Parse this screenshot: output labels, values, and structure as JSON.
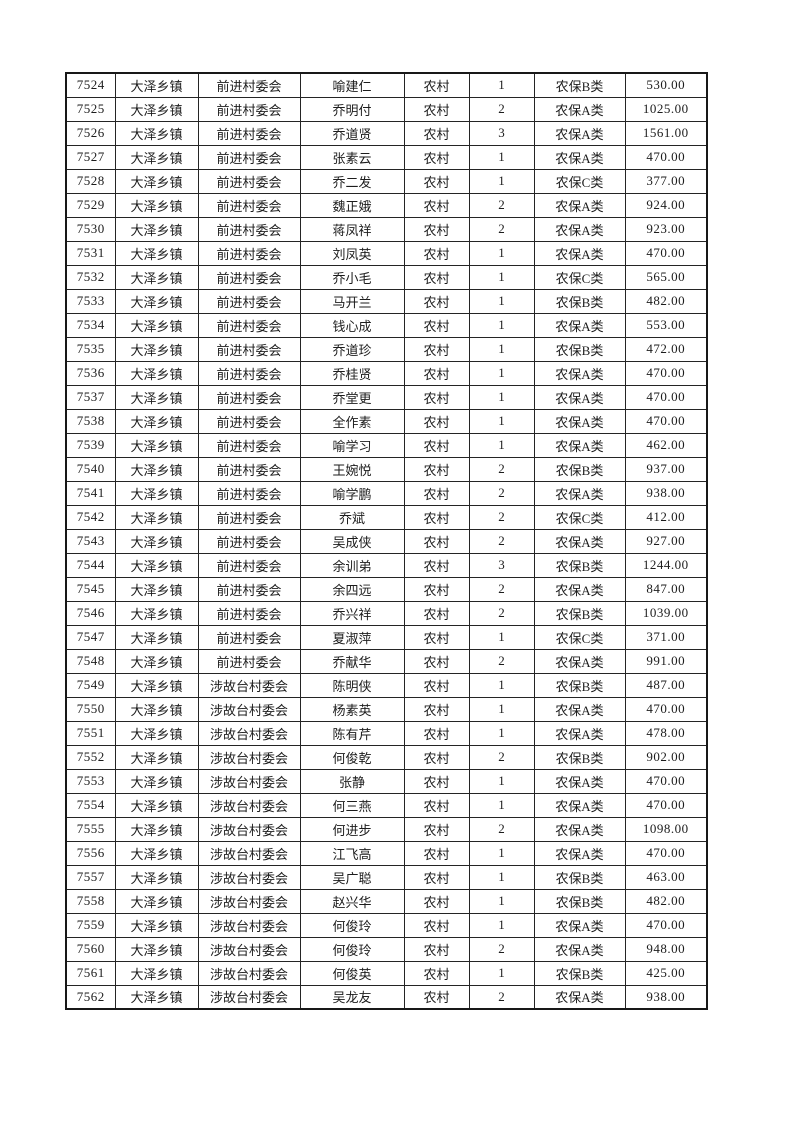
{
  "page": {
    "background_color": "#ffffff",
    "border_color": "#1c1c1c",
    "text_color": "#1c1c1c"
  },
  "table": {
    "rows": [
      [
        "7524",
        "大泽乡镇",
        "前进村委会",
        "喻建仁",
        "农村",
        "1",
        "农保B类",
        "530.00"
      ],
      [
        "7525",
        "大泽乡镇",
        "前进村委会",
        "乔明付",
        "农村",
        "2",
        "农保A类",
        "1025.00"
      ],
      [
        "7526",
        "大泽乡镇",
        "前进村委会",
        "乔道贤",
        "农村",
        "3",
        "农保A类",
        "1561.00"
      ],
      [
        "7527",
        "大泽乡镇",
        "前进村委会",
        "张素云",
        "农村",
        "1",
        "农保A类",
        "470.00"
      ],
      [
        "7528",
        "大泽乡镇",
        "前进村委会",
        "乔二发",
        "农村",
        "1",
        "农保C类",
        "377.00"
      ],
      [
        "7529",
        "大泽乡镇",
        "前进村委会",
        "魏正娥",
        "农村",
        "2",
        "农保A类",
        "924.00"
      ],
      [
        "7530",
        "大泽乡镇",
        "前进村委会",
        "蒋凤祥",
        "农村",
        "2",
        "农保A类",
        "923.00"
      ],
      [
        "7531",
        "大泽乡镇",
        "前进村委会",
        "刘凤英",
        "农村",
        "1",
        "农保A类",
        "470.00"
      ],
      [
        "7532",
        "大泽乡镇",
        "前进村委会",
        "乔小毛",
        "农村",
        "1",
        "农保C类",
        "565.00"
      ],
      [
        "7533",
        "大泽乡镇",
        "前进村委会",
        "马开兰",
        "农村",
        "1",
        "农保B类",
        "482.00"
      ],
      [
        "7534",
        "大泽乡镇",
        "前进村委会",
        "钱心成",
        "农村",
        "1",
        "农保A类",
        "553.00"
      ],
      [
        "7535",
        "大泽乡镇",
        "前进村委会",
        "乔道珍",
        "农村",
        "1",
        "农保B类",
        "472.00"
      ],
      [
        "7536",
        "大泽乡镇",
        "前进村委会",
        "乔桂贤",
        "农村",
        "1",
        "农保A类",
        "470.00"
      ],
      [
        "7537",
        "大泽乡镇",
        "前进村委会",
        "乔堂更",
        "农村",
        "1",
        "农保A类",
        "470.00"
      ],
      [
        "7538",
        "大泽乡镇",
        "前进村委会",
        "全作素",
        "农村",
        "1",
        "农保A类",
        "470.00"
      ],
      [
        "7539",
        "大泽乡镇",
        "前进村委会",
        "喻学习",
        "农村",
        "1",
        "农保A类",
        "462.00"
      ],
      [
        "7540",
        "大泽乡镇",
        "前进村委会",
        "王婉悦",
        "农村",
        "2",
        "农保B类",
        "937.00"
      ],
      [
        "7541",
        "大泽乡镇",
        "前进村委会",
        "喻学鹏",
        "农村",
        "2",
        "农保A类",
        "938.00"
      ],
      [
        "7542",
        "大泽乡镇",
        "前进村委会",
        "乔斌",
        "农村",
        "2",
        "农保C类",
        "412.00"
      ],
      [
        "7543",
        "大泽乡镇",
        "前进村委会",
        "吴成侠",
        "农村",
        "2",
        "农保A类",
        "927.00"
      ],
      [
        "7544",
        "大泽乡镇",
        "前进村委会",
        "余训弟",
        "农村",
        "3",
        "农保B类",
        "1244.00"
      ],
      [
        "7545",
        "大泽乡镇",
        "前进村委会",
        "余四远",
        "农村",
        "2",
        "农保A类",
        "847.00"
      ],
      [
        "7546",
        "大泽乡镇",
        "前进村委会",
        "乔兴祥",
        "农村",
        "2",
        "农保B类",
        "1039.00"
      ],
      [
        "7547",
        "大泽乡镇",
        "前进村委会",
        "夏淑萍",
        "农村",
        "1",
        "农保C类",
        "371.00"
      ],
      [
        "7548",
        "大泽乡镇",
        "前进村委会",
        "乔献华",
        "农村",
        "2",
        "农保A类",
        "991.00"
      ],
      [
        "7549",
        "大泽乡镇",
        "涉故台村委会",
        "陈明侠",
        "农村",
        "1",
        "农保B类",
        "487.00"
      ],
      [
        "7550",
        "大泽乡镇",
        "涉故台村委会",
        "杨素英",
        "农村",
        "1",
        "农保A类",
        "470.00"
      ],
      [
        "7551",
        "大泽乡镇",
        "涉故台村委会",
        "陈有芹",
        "农村",
        "1",
        "农保A类",
        "478.00"
      ],
      [
        "7552",
        "大泽乡镇",
        "涉故台村委会",
        "何俊乾",
        "农村",
        "2",
        "农保B类",
        "902.00"
      ],
      [
        "7553",
        "大泽乡镇",
        "涉故台村委会",
        "张静",
        "农村",
        "1",
        "农保A类",
        "470.00"
      ],
      [
        "7554",
        "大泽乡镇",
        "涉故台村委会",
        "何三燕",
        "农村",
        "1",
        "农保A类",
        "470.00"
      ],
      [
        "7555",
        "大泽乡镇",
        "涉故台村委会",
        "何进步",
        "农村",
        "2",
        "农保A类",
        "1098.00"
      ],
      [
        "7556",
        "大泽乡镇",
        "涉故台村委会",
        "江飞高",
        "农村",
        "1",
        "农保A类",
        "470.00"
      ],
      [
        "7557",
        "大泽乡镇",
        "涉故台村委会",
        "吴广聪",
        "农村",
        "1",
        "农保B类",
        "463.00"
      ],
      [
        "7558",
        "大泽乡镇",
        "涉故台村委会",
        "赵兴华",
        "农村",
        "1",
        "农保B类",
        "482.00"
      ],
      [
        "7559",
        "大泽乡镇",
        "涉故台村委会",
        "何俊玲",
        "农村",
        "1",
        "农保A类",
        "470.00"
      ],
      [
        "7560",
        "大泽乡镇",
        "涉故台村委会",
        "何俊玲",
        "农村",
        "2",
        "农保A类",
        "948.00"
      ],
      [
        "7561",
        "大泽乡镇",
        "涉故台村委会",
        "何俊英",
        "农村",
        "1",
        "农保B类",
        "425.00"
      ],
      [
        "7562",
        "大泽乡镇",
        "涉故台村委会",
        "吴龙友",
        "农村",
        "2",
        "农保A类",
        "938.00"
      ]
    ]
  }
}
